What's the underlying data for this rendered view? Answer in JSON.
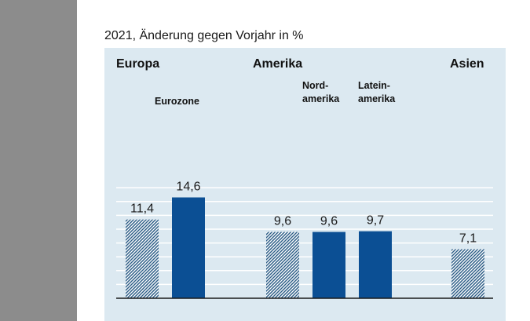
{
  "subtitle": "2021, Änderung gegen Vorjahr in %",
  "colors": {
    "panel_bg": "#dce9f1",
    "dark_bar": "#0b4f94",
    "hatch_bar": "#2e5f88",
    "gridline": "#ffffff",
    "baseline": "#1a1a1a",
    "sidebar": "#8c8c8c"
  },
  "groups": {
    "europa": "Europa",
    "amerika": "Amerika",
    "asien": "Asien"
  },
  "sublabels": {
    "eurozone": "Eurozone",
    "nordamerika_1": "Nord-",
    "nordamerika_2": "amerika",
    "lateinamerika_1": "Latein-",
    "lateinamerika_2": "amerika"
  },
  "chart_data": {
    "type": "bar",
    "title": "2021, Änderung gegen Vorjahr in %",
    "ylim": [
      0,
      16
    ],
    "grid": true,
    "categories": [
      "Europa",
      "Eurozone",
      "Amerika",
      "Nordamerika",
      "Lateinamerika",
      "Asien"
    ],
    "values": [
      11.4,
      14.6,
      9.6,
      9.6,
      9.7,
      7.1
    ],
    "value_labels": [
      "11,4",
      "14,6",
      "9,6",
      "9,6",
      "9,7",
      "7,1"
    ],
    "styles": [
      "hatched",
      "solid",
      "hatched",
      "solid",
      "solid",
      "hatched"
    ]
  }
}
